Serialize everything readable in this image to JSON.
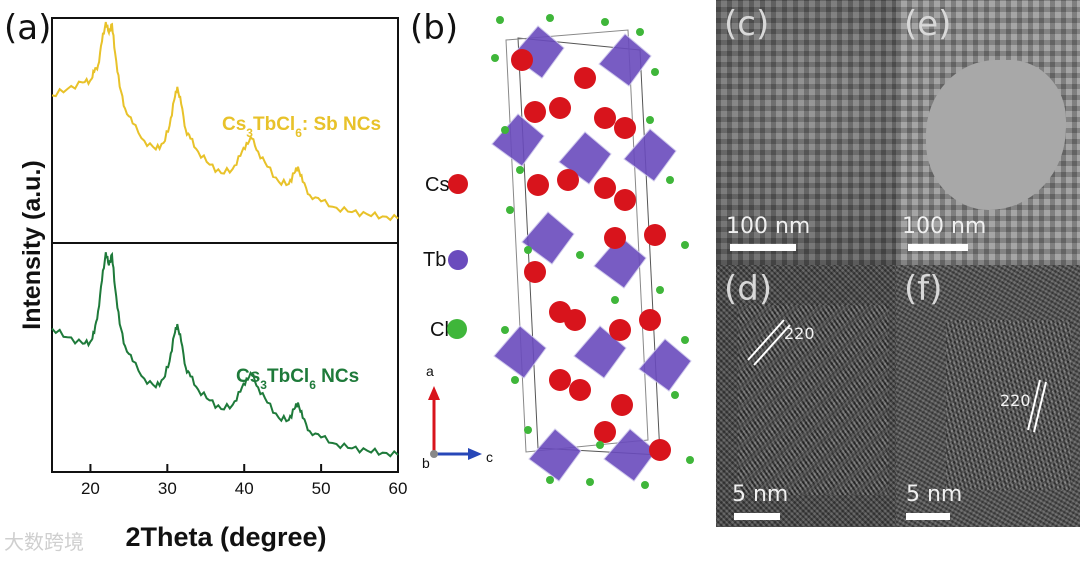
{
  "panels": {
    "a": "(a)",
    "b": "(b)",
    "c": "(c)",
    "d": "(d)",
    "e": "(e)",
    "f": "(f)"
  },
  "chart_data": {
    "type": "line",
    "xlabel": "2Theta (degree)",
    "ylabel": "Intensity (a.u.)",
    "xlim": [
      15,
      60
    ],
    "xticks": [
      20,
      30,
      40,
      50,
      60
    ],
    "grid": false,
    "series": [
      {
        "name": "Cs3TbCl6: Sb NCs",
        "color": "#e8c22a",
        "x": [
          15,
          17,
          19,
          20,
          20.5,
          21,
          21.5,
          22,
          22.4,
          22.8,
          23.2,
          23.8,
          24.5,
          25.5,
          27,
          28.5,
          29.5,
          30.3,
          30.9,
          31.3,
          31.8,
          32.4,
          33,
          34,
          35.5,
          37,
          38.5,
          39.5,
          40.3,
          41,
          41.8,
          43,
          44.5,
          45.8,
          46.5,
          47,
          47.6,
          48.5,
          50,
          52,
          54,
          56,
          58,
          60
        ],
        "y": [
          0.66,
          0.69,
          0.72,
          0.73,
          0.77,
          0.8,
          0.91,
          1.0,
          0.95,
          0.99,
          0.86,
          0.7,
          0.6,
          0.53,
          0.45,
          0.41,
          0.44,
          0.52,
          0.64,
          0.7,
          0.62,
          0.5,
          0.46,
          0.4,
          0.34,
          0.3,
          0.32,
          0.38,
          0.44,
          0.46,
          0.4,
          0.33,
          0.26,
          0.25,
          0.3,
          0.33,
          0.26,
          0.2,
          0.17,
          0.14,
          0.12,
          0.11,
          0.1,
          0.09
        ]
      },
      {
        "name": "Cs3TbCl6 NCs",
        "color": "#1e7a3a",
        "x": [
          15,
          17,
          19,
          20,
          20.5,
          21,
          21.5,
          22,
          22.4,
          22.8,
          23.2,
          23.8,
          24.5,
          25.5,
          27,
          28.5,
          29.5,
          30.3,
          30.9,
          31.3,
          31.8,
          32.4,
          33,
          34,
          35.5,
          37,
          38.5,
          39.5,
          40.3,
          41,
          41.8,
          43,
          44.5,
          45.8,
          46.5,
          47,
          47.6,
          48.5,
          50,
          52,
          54,
          56,
          58,
          60
        ],
        "y": [
          0.64,
          0.6,
          0.57,
          0.58,
          0.62,
          0.72,
          0.86,
          0.99,
          0.93,
          0.98,
          0.83,
          0.66,
          0.56,
          0.49,
          0.41,
          0.37,
          0.41,
          0.49,
          0.61,
          0.66,
          0.58,
          0.46,
          0.42,
          0.36,
          0.31,
          0.27,
          0.29,
          0.35,
          0.41,
          0.43,
          0.37,
          0.3,
          0.23,
          0.22,
          0.27,
          0.3,
          0.23,
          0.17,
          0.14,
          0.11,
          0.09,
          0.08,
          0.07,
          0.06
        ]
      }
    ],
    "annotations": [
      {
        "series": 0,
        "text": "Cs3TbCl6: Sb NCs",
        "color": "#e8c22a"
      },
      {
        "series": 1,
        "text": "Cs3TbCl6 NCs",
        "color": "#1e7a3a"
      }
    ]
  },
  "structure": {
    "legend": [
      {
        "label": "Cs",
        "color": "#d8141c"
      },
      {
        "label": "Tb",
        "color": "#6a4bbd"
      },
      {
        "label": "Cl",
        "color": "#3fb63a"
      }
    ],
    "axes": {
      "a": "a",
      "b": "b",
      "c": "c",
      "a_color": "#d8141c",
      "c_color": "#2747b8"
    }
  },
  "tem": {
    "c_scale": "100 nm",
    "e_scale": "100 nm",
    "d_scale": "5 nm",
    "f_scale": "5 nm",
    "d_spacing": "220",
    "f_spacing": "220"
  },
  "watermark": "大数跨境"
}
